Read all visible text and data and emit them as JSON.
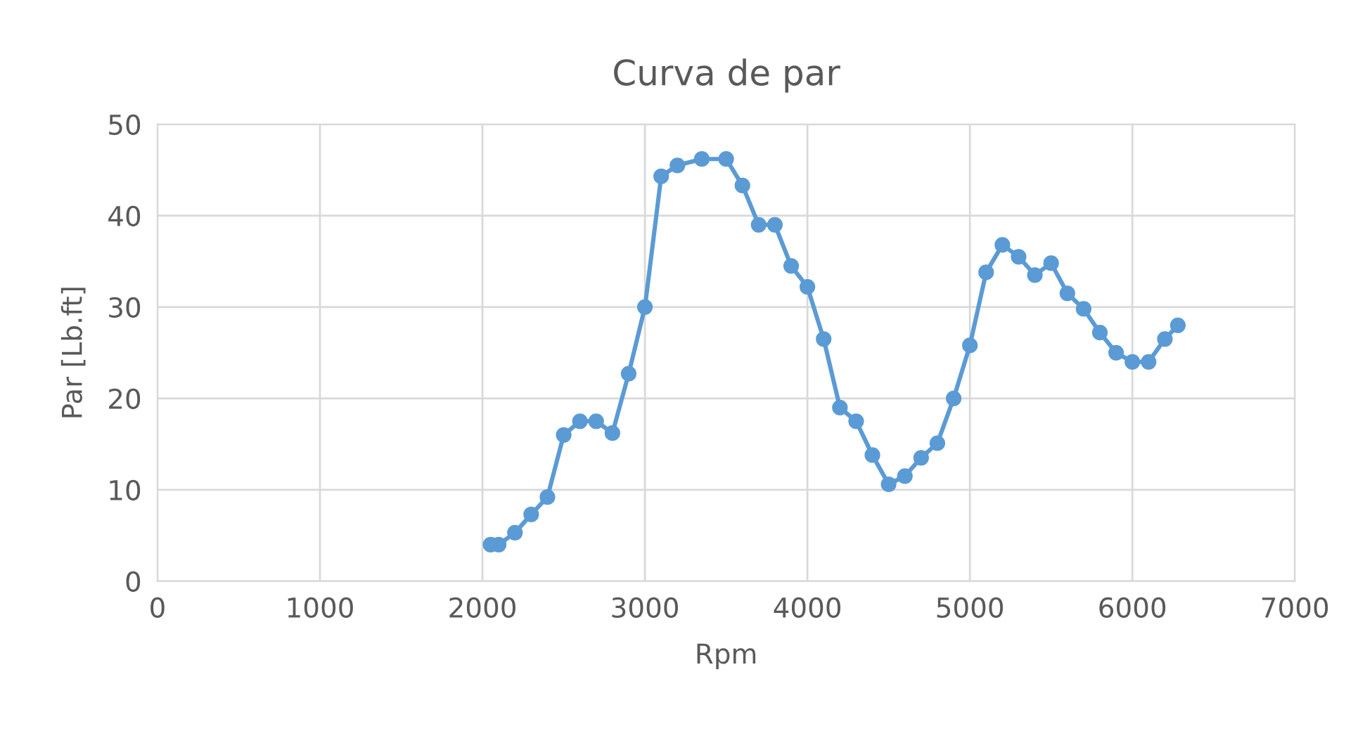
{
  "chart_data": {
    "type": "line",
    "title": "Curva de par",
    "xlabel": "Rpm",
    "ylabel": "Par [Lb.ft]",
    "x": [
      2050,
      2100,
      2200,
      2300,
      2400,
      2500,
      2600,
      2700,
      2800,
      2900,
      3000,
      3100,
      3200,
      3350,
      3500,
      3600,
      3700,
      3800,
      3900,
      4000,
      4100,
      4200,
      4300,
      4400,
      4500,
      4600,
      4700,
      4800,
      4900,
      5000,
      5100,
      5200,
      5300,
      5400,
      5500,
      5600,
      5700,
      5800,
      5900,
      6000,
      6100,
      6200,
      6280
    ],
    "series": [
      {
        "color": "#5b9bd5",
        "values": [
          4,
          4,
          5.3,
          7.3,
          9.2,
          16,
          17.5,
          17.5,
          16.2,
          22.7,
          30,
          44.3,
          45.5,
          46.2,
          46.2,
          43.3,
          39,
          39,
          34.5,
          32.2,
          26.5,
          19,
          17.5,
          13.8,
          10.6,
          11.5,
          13.5,
          15.1,
          20,
          25.8,
          33.8,
          36.8,
          35.5,
          33.5,
          34.8,
          31.5,
          29.8,
          27.2,
          25,
          24,
          24,
          26.5,
          28
        ]
      }
    ],
    "xlim": [
      0,
      7000
    ],
    "xticks": [
      0,
      1000,
      2000,
      3000,
      4000,
      5000,
      6000,
      7000
    ],
    "ylim": [
      0,
      50
    ],
    "yticks": [
      0,
      10,
      20,
      30,
      40,
      50
    ],
    "grid": true,
    "marker": "circle",
    "line_style": "solid"
  }
}
